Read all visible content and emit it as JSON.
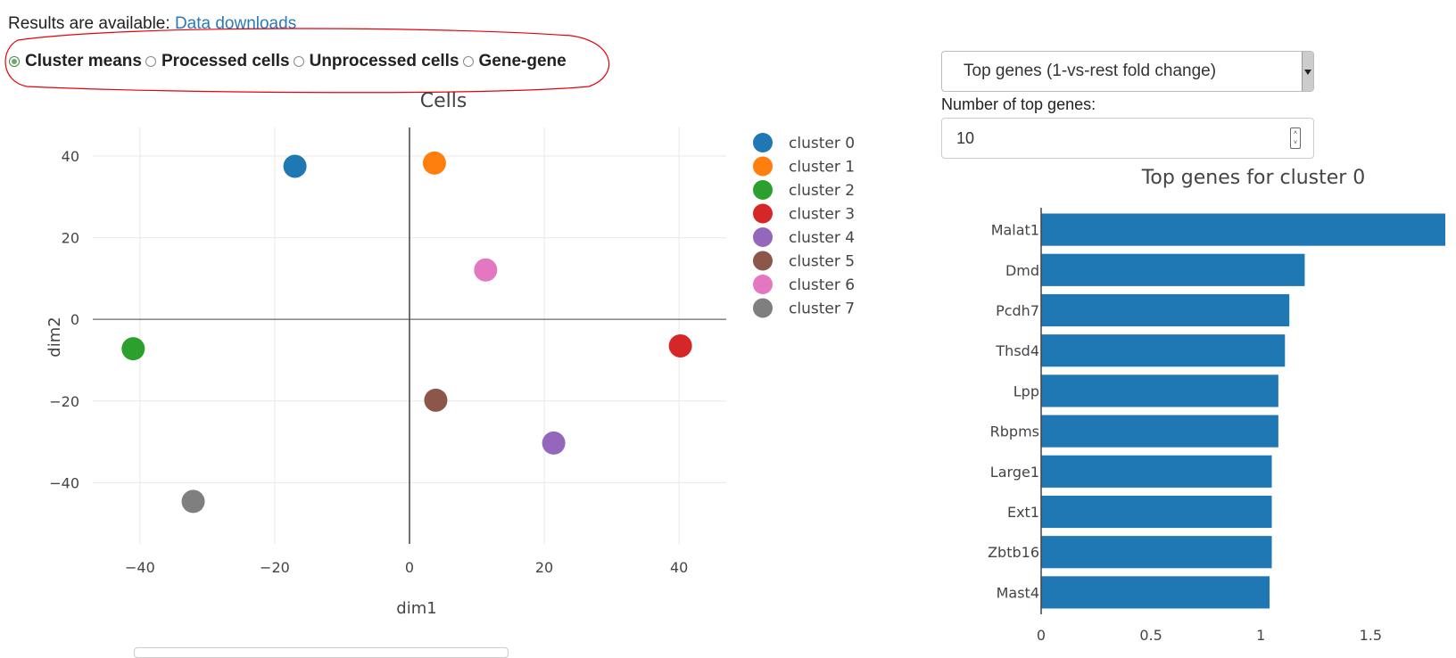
{
  "header": {
    "results_prefix": "Results are available:",
    "downloads_link": "Data downloads"
  },
  "view_mode": {
    "options": [
      "Cluster means",
      "Processed cells",
      "Unprocessed cells",
      "Gene-gene"
    ],
    "selected": "Cluster means",
    "annotation_color": "#e8000b"
  },
  "gene_select": {
    "value": "Top genes (1-vs-rest fold change)"
  },
  "top_genes_input": {
    "label": "Number of top genes:",
    "value": "10"
  },
  "chart_data": [
    {
      "type": "scatter",
      "title": "Cells",
      "xlabel": "dim1",
      "ylabel": "dim2",
      "xlim": [
        -47,
        47
      ],
      "ylim": [
        -55,
        47
      ],
      "xticks": [
        -40,
        -20,
        0,
        20,
        40
      ],
      "yticks": [
        40,
        20,
        0,
        -20,
        -40
      ],
      "tick_labels_x": [
        "−40",
        "−20",
        "0",
        "20",
        "40"
      ],
      "tick_labels_y": [
        "40",
        "20",
        "0",
        "−20",
        "−40"
      ],
      "grid": true,
      "legend_position": "right",
      "series": [
        {
          "name": "cluster 0",
          "color": "#1f77b4",
          "x": -17,
          "y": 37.5
        },
        {
          "name": "cluster 1",
          "color": "#ff7f0e",
          "x": 3.7,
          "y": 38.3
        },
        {
          "name": "cluster 2",
          "color": "#2ca02c",
          "x": -41,
          "y": -7.2
        },
        {
          "name": "cluster 3",
          "color": "#d62728",
          "x": 40.2,
          "y": -6.5
        },
        {
          "name": "cluster 4",
          "color": "#9467bd",
          "x": 21.4,
          "y": -30.3
        },
        {
          "name": "cluster 5",
          "color": "#8c564b",
          "x": 3.9,
          "y": -19.8
        },
        {
          "name": "cluster 6",
          "color": "#e377c2",
          "x": 11.3,
          "y": 12.1
        },
        {
          "name": "cluster 7",
          "color": "#7f7f7f",
          "x": -32.1,
          "y": -44.6
        }
      ]
    },
    {
      "type": "bar",
      "orientation": "horizontal",
      "title": "Top genes for cluster 0",
      "categories": [
        "Malat1",
        "Dmd",
        "Pcdh7",
        "Thsd4",
        "Lpp",
        "Rbpms",
        "Large1",
        "Ext1",
        "Zbtb16",
        "Mast4"
      ],
      "values": [
        1.84,
        1.2,
        1.13,
        1.11,
        1.08,
        1.08,
        1.05,
        1.05,
        1.05,
        1.04
      ],
      "xlim": [
        0,
        1.84
      ],
      "xticks": [
        0,
        0.5,
        1,
        1.5
      ],
      "tick_labels_x": [
        "0",
        "0.5",
        "1",
        "1.5"
      ],
      "color": "#1f77b4"
    }
  ]
}
